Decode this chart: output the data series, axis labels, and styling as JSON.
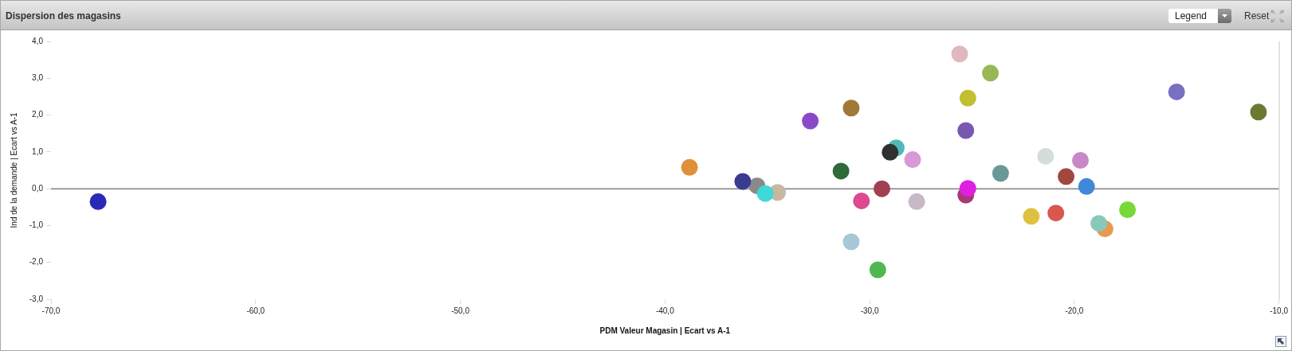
{
  "chart_data": {
    "type": "scatter",
    "title": "Dispersion des magasins",
    "xlabel": "PDM Valeur Magasin | Ecart vs A-1",
    "ylabel": "Ind de la demande | Ecart vs A-1",
    "x": [
      -67.7,
      -38.8,
      -35.5,
      -36.2,
      -34.5,
      -35.1,
      -32.9,
      -30.9,
      -31.4,
      -30.9,
      -29.6,
      -30.4,
      -29.4,
      -28.7,
      -29.0,
      -27.9,
      -27.7,
      -25.6,
      -25.2,
      -25.3,
      -25.3,
      -25.2,
      -24.1,
      -23.6,
      -21.4,
      -19.7,
      -20.4,
      -19.4,
      -22.1,
      -20.9,
      -18.5,
      -18.8,
      -17.4,
      -15.0,
      -11.0
    ],
    "values": [
      -0.35,
      0.58,
      0.08,
      0.2,
      -0.1,
      -0.13,
      1.84,
      2.19,
      0.48,
      -1.44,
      -2.2,
      -0.33,
      0.0,
      1.11,
      0.99,
      0.79,
      -0.35,
      3.66,
      2.46,
      1.58,
      -0.17,
      0.01,
      3.14,
      0.42,
      0.88,
      0.77,
      0.33,
      0.06,
      -0.75,
      -0.66,
      -1.09,
      -0.94,
      -0.57,
      2.63,
      2.08
    ],
    "colors": [
      "#2a2ab8",
      "#e0903a",
      "#8a8a8a",
      "#3a3a90",
      "#c8b8a0",
      "#40d8d8",
      "#8a4ac8",
      "#a07838",
      "#2e6a3a",
      "#a8c8d8",
      "#50b850",
      "#e04890",
      "#a04050",
      "#50b8b8",
      "#303030",
      "#d898d8",
      "#c8b8c8",
      "#e0b8c0",
      "#c0c030",
      "#7858b0",
      "#a83878",
      "#e020e0",
      "#98b858",
      "#6a9898",
      "#d4dcdc",
      "#c888c8",
      "#a04840",
      "#4088d8",
      "#e0c040",
      "#d85850",
      "#e89850",
      "#88c8b8",
      "#78d838",
      "#7870c0",
      "#6a7a30"
    ],
    "xlim": [
      -70,
      -10
    ],
    "ylim": [
      -3,
      4
    ],
    "xticks": [
      {
        "value": -70,
        "label": "-70,0"
      },
      {
        "value": -60,
        "label": "-60,0"
      },
      {
        "value": -50,
        "label": "-50,0"
      },
      {
        "value": -40,
        "label": "-40,0"
      },
      {
        "value": -30,
        "label": "-30,0"
      },
      {
        "value": -20,
        "label": "-20,0"
      },
      {
        "value": -10,
        "label": "-10,0"
      }
    ],
    "yticks": [
      {
        "value": -3,
        "label": "-3,0"
      },
      {
        "value": -2,
        "label": "-2,0"
      },
      {
        "value": -1,
        "label": "-1,0"
      },
      {
        "value": 0,
        "label": "0,0"
      },
      {
        "value": 1,
        "label": "1,0"
      },
      {
        "value": 2,
        "label": "2,0"
      },
      {
        "value": 3,
        "label": "3,0"
      },
      {
        "value": 4,
        "label": "4,0"
      }
    ],
    "ref_lines": [
      {
        "axis": "y",
        "value": 0,
        "color": "#9a9a9a"
      }
    ],
    "grid": false,
    "legend": false,
    "marker": "circle",
    "annotations": [
      "Legend",
      "Reset"
    ]
  }
}
